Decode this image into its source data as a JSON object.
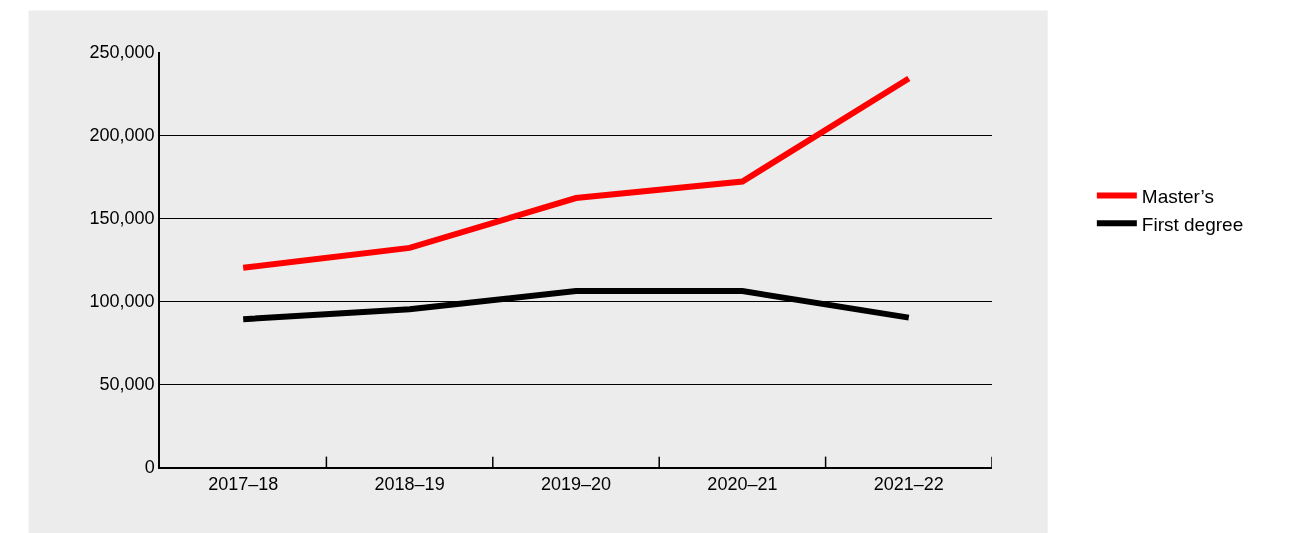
{
  "chart_data": {
    "type": "line",
    "categories": [
      "2017–18",
      "2018–19",
      "2019–20",
      "2020–21",
      "2021–22"
    ],
    "series": [
      {
        "name": "Master’s",
        "color": "#ff0000",
        "values": [
          120000,
          132000,
          162000,
          172000,
          234000
        ]
      },
      {
        "name": "First degree",
        "color": "#000000",
        "values": [
          89000,
          95000,
          106000,
          106000,
          90000
        ]
      }
    ],
    "ylim": [
      0,
      250000
    ],
    "yticks": [
      {
        "value": 0,
        "label": "0"
      },
      {
        "value": 50000,
        "label": "50,000"
      },
      {
        "value": 100000,
        "label": "100,000"
      },
      {
        "value": 150000,
        "label": "150,000"
      },
      {
        "value": 200000,
        "label": "200,000"
      },
      {
        "value": 250000,
        "label": "250,000"
      }
    ],
    "grid": "y",
    "legend": "right",
    "marker": "none",
    "line_style": "solid"
  }
}
